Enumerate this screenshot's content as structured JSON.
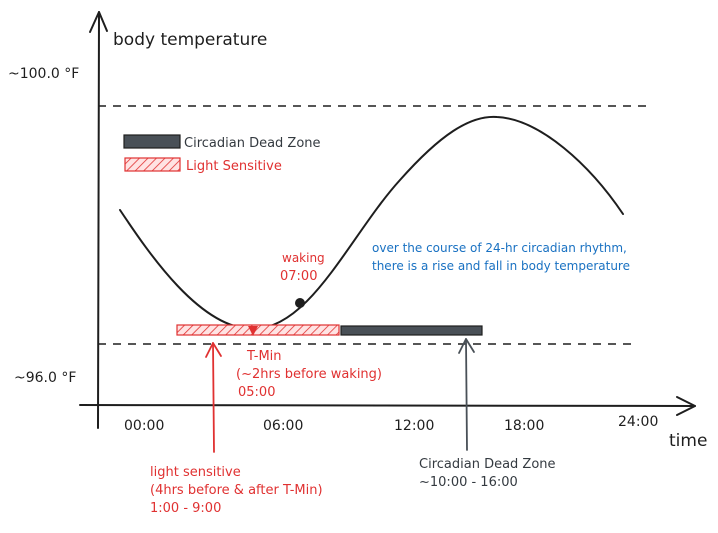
{
  "axes": {
    "y_title": "body temperature",
    "x_title": "time",
    "y_high_label": "~100.0 °F",
    "y_low_label": "~96.0 °F",
    "x_ticks": [
      "00:00",
      "06:00",
      "12:00",
      "18:00",
      "24:00"
    ]
  },
  "legend": {
    "dead_zone_label": "Circadian Dead Zone",
    "light_sensitive_label": "Light Sensitive"
  },
  "waking": {
    "label": "waking",
    "time": "07:00"
  },
  "note": {
    "line1": "over the course of 24-hr circadian rhythm,",
    "line2": "there is a rise and fall in body temperature"
  },
  "tmin": {
    "line1": "T-Min",
    "line2": "(~2hrs before waking)",
    "line3": "05:00"
  },
  "light_sensitive_note": {
    "line1": "light sensitive",
    "line2": "(4hrs before & after T-Min)",
    "line3": "1:00 - 9:00"
  },
  "dead_zone_note": {
    "line1": "Circadian Dead Zone",
    "line2": "~10:00 - 16:00"
  },
  "colors": {
    "ink": "#1e1e1e",
    "red": "#e03131",
    "blue": "#1971c2",
    "dead_zone_fill": "#495057",
    "light_fill": "#ffc9c9"
  }
}
